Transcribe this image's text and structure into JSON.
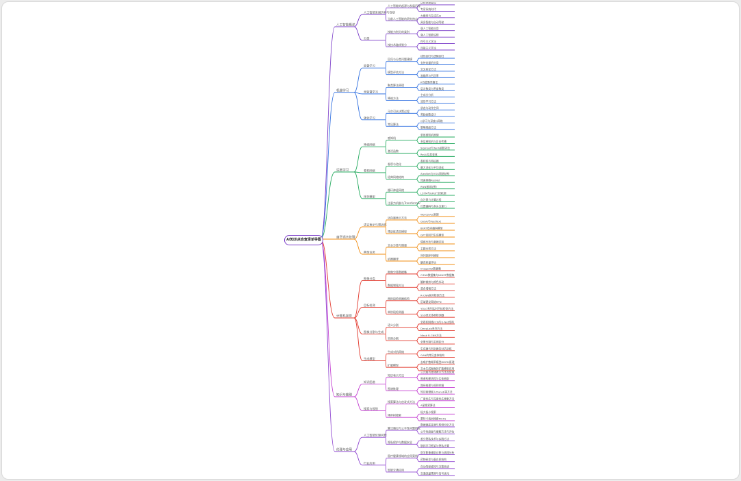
{
  "root": "AI知识点自查清单导图",
  "colors": {
    "root": "#7a3cc8",
    "branches": [
      "#7a3cc8",
      "#2f6fe0",
      "#1fa85b",
      "#f08c12",
      "#e2362a",
      "#c23ad0",
      "#8e44d0"
    ]
  },
  "branches": [
    {
      "label": "人工智能概述",
      "children": [
        {
          "label": "人工智能发展历程与现状",
          "children": [
            {
              "label": "人工智能的起源与发展历程",
              "children": [
                {
                  "label": "达特茅斯会议"
                },
                {
                  "label": "专家系统时代"
                }
              ]
            },
            {
              "label": "当前人工智能的研究热点",
              "children": [
                {
                  "label": "大模型与生成式AI"
                },
                {
                  "label": "具身智能与自动驾驶"
                }
              ]
            }
          ]
        },
        {
          "label": "分类",
          "children": [
            {
              "label": "按能力划分的类别",
              "children": [
                {
                  "label": "弱人工智能应用"
                },
                {
                  "label": "强人工智能设想"
                }
              ]
            },
            {
              "label": "按技术路线划分",
              "children": [
                {
                  "label": "符号主义学派"
                },
                {
                  "label": "连接主义学派"
                }
              ]
            }
          ]
        }
      ]
    },
    {
      "label": "机器学习",
      "children": [
        {
          "label": "监督学习",
          "children": [
            {
              "label": "回归与分类问题建模",
              "children": [
                {
                  "label": "线性回归与逻辑回归"
                },
                {
                  "label": "支持向量机分类"
                }
              ]
            },
            {
              "label": "模型评估方法",
              "children": [
                {
                  "label": "交叉验证方法"
                },
                {
                  "label": "准确率与召回率"
                }
              ]
            }
          ]
        },
        {
          "label": "无监督学习",
          "children": [
            {
              "label": "聚类算法原理",
              "children": [
                {
                  "label": "K均值聚类算法"
                },
                {
                  "label": "层次聚类与密度聚类"
                }
              ]
            },
            {
              "label": "降维方法",
              "children": [
                {
                  "label": "主成分分析"
                },
                {
                  "label": "流形学习方法"
                }
              ]
            }
          ]
        },
        {
          "label": "强化学习",
          "children": [
            {
              "label": "马尔可夫决策过程",
              "children": [
                {
                  "label": "状态与动作空间"
                },
                {
                  "label": "奖励函数设计"
                }
              ]
            },
            {
              "label": "常见算法",
              "children": [
                {
                  "label": "Q学习与深度Q网络"
                },
                {
                  "label": "策略梯度方法"
                }
              ]
            }
          ]
        }
      ]
    },
    {
      "label": "深度学习",
      "children": [
        {
          "label": "神经网络",
          "children": [
            {
              "label": "感知机",
              "children": [
                {
                  "label": "单层感知机原理"
                },
                {
                  "label": "多层感知机与反向传播"
                }
              ]
            },
            {
              "label": "激活函数",
              "children": [
                {
                  "label": "Sigmoid与Tanh函数对比"
                },
                {
                  "label": "ReLU及其变体"
                }
              ]
            }
          ]
        },
        {
          "label": "卷积网络",
          "children": [
            {
              "label": "卷积与池化",
              "children": [
                {
                  "label": "卷积核与特征图"
                },
                {
                  "label": "最大池化与平均池化"
                }
              ]
            },
            {
              "label": "经典网络结构",
              "children": [
                {
                  "label": "AlexNet与VGG网络结构"
                },
                {
                  "label": "残差网络ResNet"
                }
              ]
            }
          ]
        },
        {
          "label": "序列模型",
          "children": [
            {
              "label": "循环神经网络",
              "children": [
                {
                  "label": "RNN基本结构"
                },
                {
                  "label": "LSTM与GRU门控机制"
                }
              ]
            },
            {
              "label": "注意力机制与Transformer",
              "children": [
                {
                  "label": "自注意力计算过程"
                },
                {
                  "label": "位置编码与多头注意力"
                }
              ]
            }
          ]
        }
      ]
    },
    {
      "label": "自然语言处理",
      "children": [
        {
          "label": "语言表示与预训练",
          "children": [
            {
              "label": "词向量表示方法",
              "children": [
                {
                  "label": "Word2Vec原理"
                },
                {
                  "label": "GloVe与FastText"
                }
              ]
            },
            {
              "label": "预训练语言模型",
              "children": [
                {
                  "label": "BERT双向编码模型"
                },
                {
                  "label": "GPT自回归生成模型"
                }
              ]
            }
          ]
        },
        {
          "label": "典型任务",
          "children": [
            {
              "label": "文本分类与情感",
              "children": [
                {
                  "label": "情感分析与意图识别"
                },
                {
                  "label": "主题分类方法"
                }
              ]
            },
            {
              "label": "机器翻译",
              "children": [
                {
                  "label": "序列到序列模型"
                },
                {
                  "label": "翻译质量评估"
                }
              ]
            }
          ]
        }
      ]
    },
    {
      "label": "计算机视觉",
      "children": [
        {
          "label": "图像分类",
          "children": [
            {
              "label": "图像分类数据集",
              "children": [
                {
                  "label": "ImageNet数据集"
                },
                {
                  "label": "CIFAR数据集与MNIST数据集"
                }
              ]
            },
            {
              "label": "数据增强方法",
              "children": [
                {
                  "label": "翻转裁剪与颜色抖动"
                },
                {
                  "label": "混合增强方法"
                }
              ]
            }
          ]
        },
        {
          "label": "目标检测",
          "children": [
            {
              "label": "两阶段检测器结构",
              "children": [
                {
                  "label": "R-CNN系列检测方法"
                },
                {
                  "label": "区域建议网络RPN"
                }
              ]
            },
            {
              "label": "单阶段检测器",
              "children": [
                {
                  "label": "YOLO系列实时目标检测方法"
                },
                {
                  "label": "SSD单次多框检测器"
                }
              ]
            }
          ]
        },
        {
          "label": "图像分割与生成",
          "children": [
            {
              "label": "语义分割",
              "children": [
                {
                  "label": "全卷积网络FCN与U-Net结构"
                },
                {
                  "label": "DeepLab系列方法"
                }
              ]
            },
            {
              "label": "实例分割",
              "children": [
                {
                  "label": "Mask R-CNN方法"
                },
                {
                  "label": "全景分割与实例区分"
                }
              ]
            }
          ]
        },
        {
          "label": "生成模型",
          "children": [
            {
              "label": "生成对抗网络",
              "children": [
                {
                  "label": "生成器与判别器的对抗训练"
                },
                {
                  "label": "GAN的常见变体结构"
                }
              ]
            },
            {
              "label": "扩散模型",
              "children": [
                {
                  "label": "去噪扩散概率模型DDPM原理"
                },
                {
                  "label": "文本生成图像的扩散模型应用"
                }
              ]
            }
          ]
        }
      ]
    },
    {
      "label": "知识与推理",
      "children": [
        {
          "label": "知识图谱",
          "children": [
            {
              "label": "知识表示方法",
              "children": [
                {
                  "label": "三元组与本体表示方法及应用"
                },
                {
                  "label": "图谱构建流程与实体抽取"
                }
              ]
            },
            {
              "label": "图谱推理",
              "children": [
                {
                  "label": "路径推理与规则挖掘"
                },
                {
                  "label": "知识图谱嵌入TransE等方法"
                }
              ]
            }
          ]
        },
        {
          "label": "搜索与规划",
          "children": [
            {
              "label": "搜索算法与启发式方法",
              "children": [
                {
                  "label": "广度优先与深度优先搜索方法"
                },
                {
                  "label": "A星搜索算法"
                }
              ]
            },
            {
              "label": "博弈树搜索",
              "children": [
                {
                  "label": "极大极小搜索"
                },
                {
                  "label": "蒙特卡洛树搜索MCTS"
                }
              ]
            }
          ]
        }
      ]
    },
    {
      "label": "伦理与应用",
      "children": [
        {
          "label": "人工智能伦理问题",
          "children": [
            {
              "label": "算法偏见与公平性问题研究",
              "children": [
                {
                  "label": "数据偏差来源与检测分析方法"
                },
                {
                  "label": "公平性度量与缓解方法与评估"
                }
              ]
            },
            {
              "label": "隐私保护与数据安全",
              "children": [
                {
                  "label": "差分隐私技术与实践方法"
                },
                {
                  "label": "联邦学习框架与隐私计算"
                }
              ]
            }
          ]
        },
        {
          "label": "行业应用",
          "children": [
            {
              "label": "医疗健康领域的应用案例",
              "children": [
                {
                  "label": "医学影像辅助诊断与病理分析"
                },
                {
                  "label": "药物研发与蛋白质结构"
                }
              ]
            },
            {
              "label": "智能交通应用",
              "children": [
                {
                  "label": "自动驾驶感知与决策系统"
                },
                {
                  "label": "交通流量预测与信号优化"
                }
              ]
            }
          ]
        }
      ]
    }
  ]
}
